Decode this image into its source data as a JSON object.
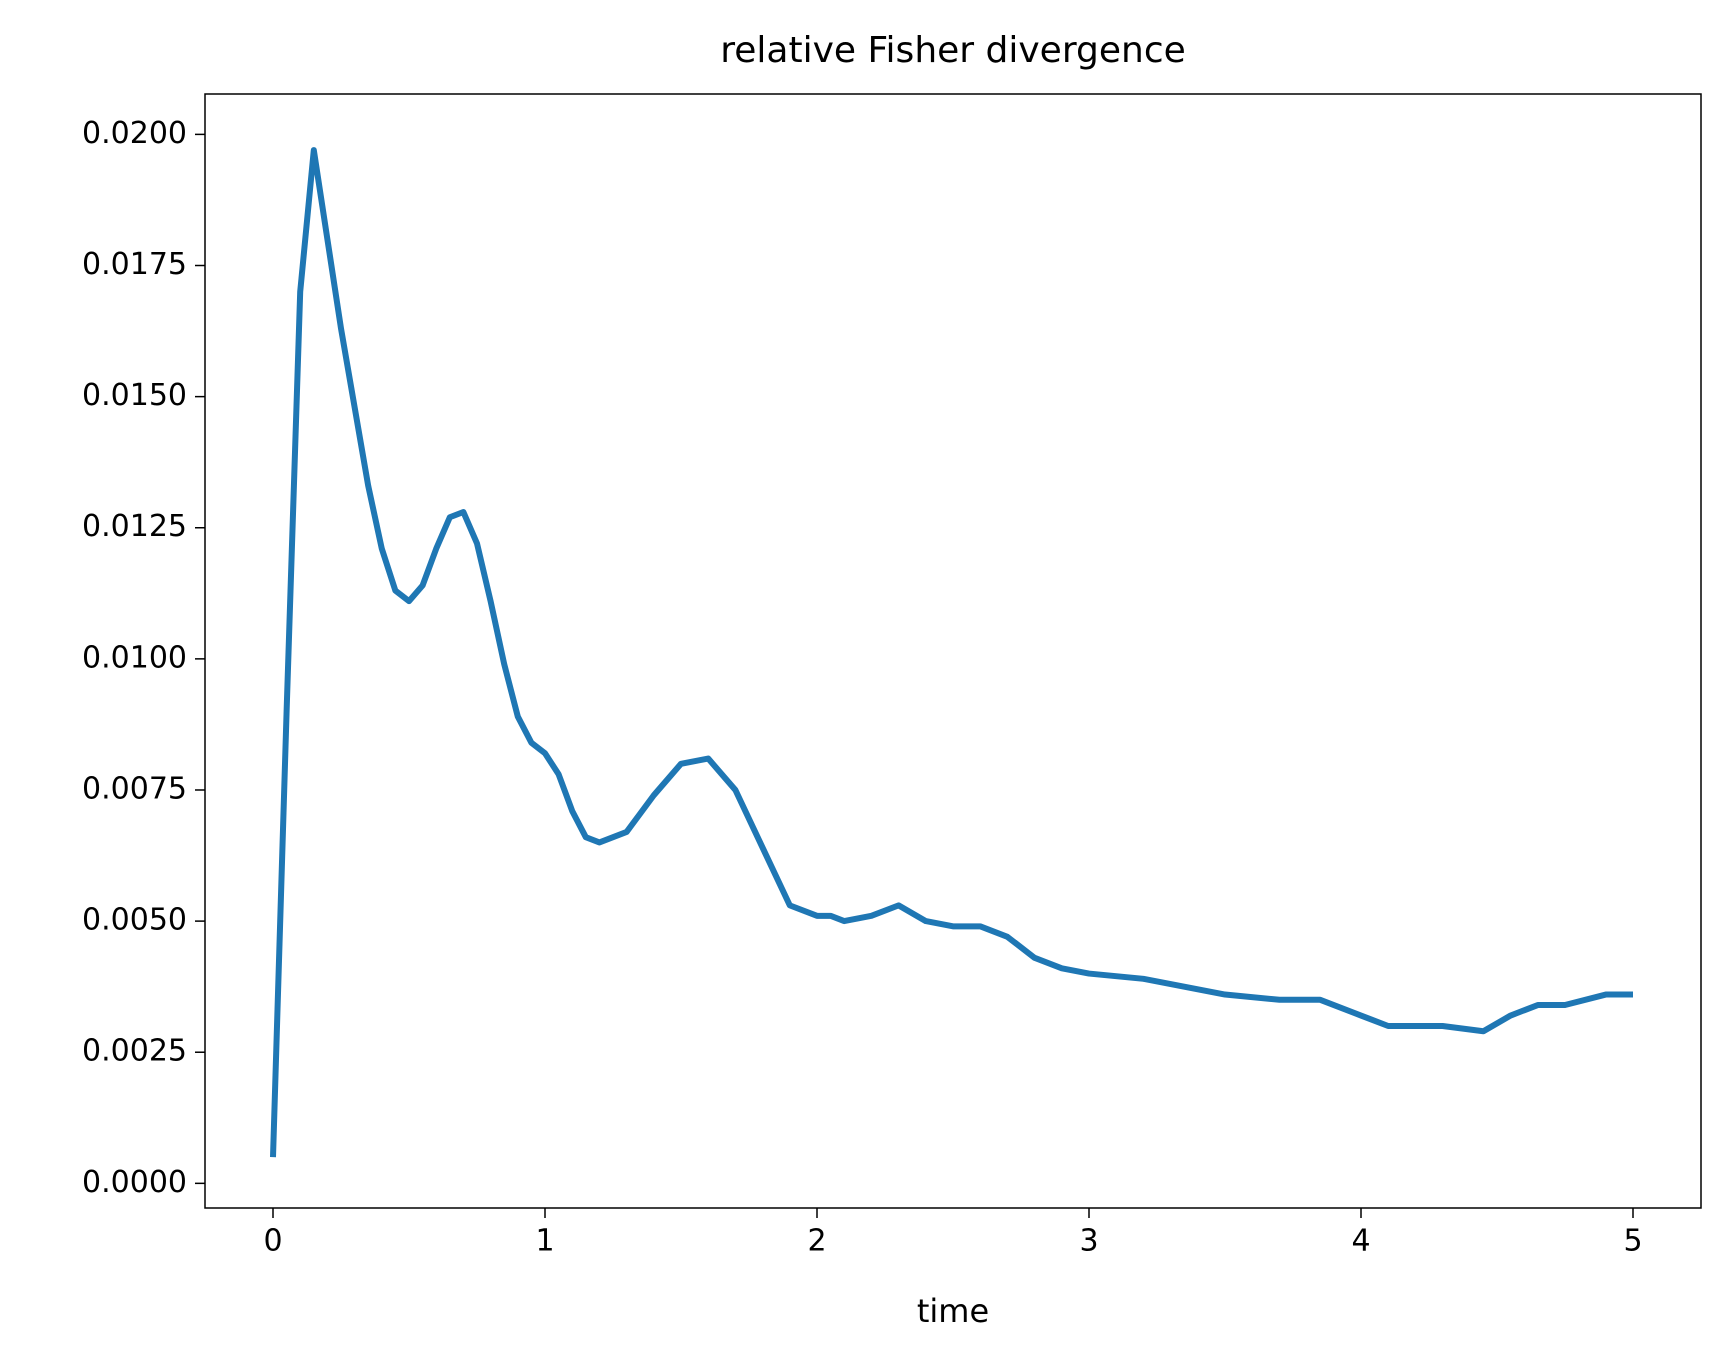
{
  "chart_data": {
    "type": "line",
    "title": "relative Fisher divergence",
    "x_label": "time",
    "x": [
      0,
      0.05,
      0.1,
      0.15,
      0.2,
      0.25,
      0.3,
      0.35,
      0.4,
      0.45,
      0.5,
      0.55,
      0.6,
      0.65,
      0.7,
      0.75,
      0.8,
      0.85,
      0.9,
      0.95,
      1.0,
      1.05,
      1.1,
      1.15,
      1.2,
      1.3,
      1.4,
      1.5,
      1.6,
      1.7,
      1.8,
      1.9,
      2.0,
      2.05,
      2.1,
      2.2,
      2.3,
      2.4,
      2.5,
      2.6,
      2.7,
      2.8,
      2.9,
      3.0,
      3.2,
      3.4,
      3.5,
      3.7,
      3.85,
      4.0,
      4.1,
      4.2,
      4.3,
      4.45,
      4.55,
      4.65,
      4.75,
      4.9,
      5.0
    ],
    "series": [
      {
        "name": "relative Fisher divergence",
        "color": "#1f77b4",
        "values": [
          0.0005,
          0.009,
          0.017,
          0.0197,
          0.018,
          0.0163,
          0.0148,
          0.0133,
          0.0121,
          0.0113,
          0.0111,
          0.0114,
          0.0121,
          0.0127,
          0.0128,
          0.0122,
          0.0111,
          0.0099,
          0.0089,
          0.0084,
          0.0082,
          0.0078,
          0.0071,
          0.0066,
          0.0065,
          0.0067,
          0.0074,
          0.008,
          0.0081,
          0.0075,
          0.0064,
          0.0053,
          0.0051,
          0.0051,
          0.005,
          0.0051,
          0.0053,
          0.005,
          0.0049,
          0.0049,
          0.0047,
          0.0043,
          0.0041,
          0.004,
          0.0039,
          0.0037,
          0.0036,
          0.0035,
          0.0035,
          0.0032,
          0.003,
          0.003,
          0.003,
          0.0029,
          0.0032,
          0.0034,
          0.0034,
          0.0036,
          0.0036
        ]
      }
    ],
    "xlim": [
      -0.25,
      5.25
    ],
    "ylim": [
      -0.00047,
      0.02077
    ],
    "xticks": [
      0,
      1,
      2,
      3,
      4,
      5
    ],
    "yticks": [
      {
        "value": 0,
        "label": "0.0000"
      },
      {
        "value": 0.0025,
        "label": "0.0025"
      },
      {
        "value": 0.005,
        "label": "0.0050"
      },
      {
        "value": 0.0075,
        "label": "0.0075"
      },
      {
        "value": 0.01,
        "label": "0.0100"
      },
      {
        "value": 0.0125,
        "label": "0.0125"
      },
      {
        "value": 0.015,
        "label": "0.0150"
      },
      {
        "value": 0.0175,
        "label": "0.0175"
      },
      {
        "value": 0.02,
        "label": "0.0200"
      }
    ]
  }
}
